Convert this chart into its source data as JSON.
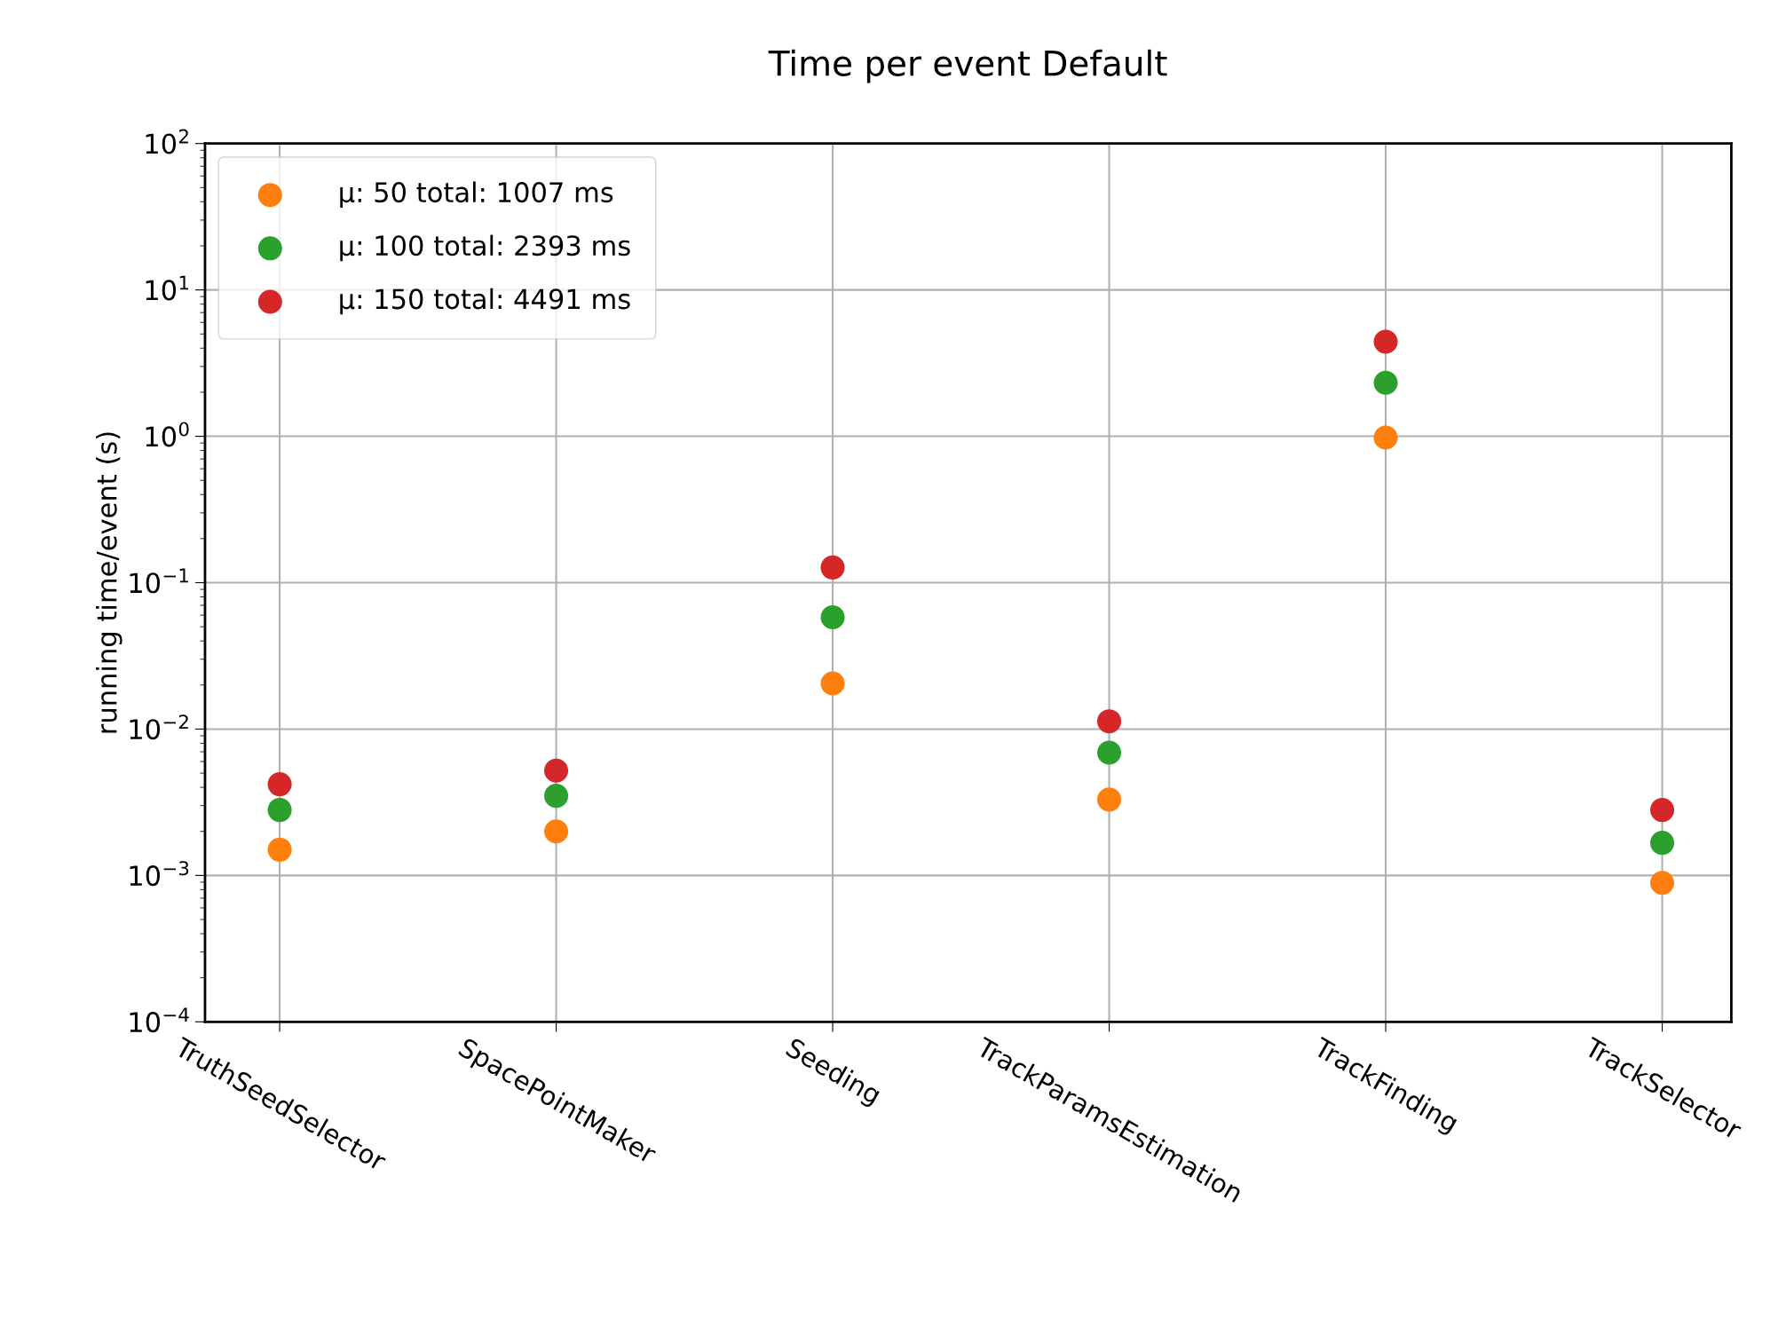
{
  "chart_data": {
    "type": "scatter",
    "title": "Time per event Default",
    "ylabel": "running time/event (s)",
    "categories": [
      "TruthSeedSelector",
      "SpacePointMaker",
      "Seeding",
      "TrackParamsEstimation",
      "TrackFinding",
      "TrackSelector"
    ],
    "series": [
      {
        "name": "μ: 50 total: 1007 ms",
        "color": "#ff7f0e",
        "values": [
          0.0015,
          0.002,
          0.0205,
          0.0033,
          0.98,
          0.00089
        ]
      },
      {
        "name": "μ: 100 total: 2393 ms",
        "color": "#2ca02c",
        "values": [
          0.0028,
          0.0035,
          0.058,
          0.0069,
          2.32,
          0.00167
        ]
      },
      {
        "name": "μ: 150 total: 4491 ms",
        "color": "#d62728",
        "values": [
          0.0042,
          0.0052,
          0.127,
          0.0113,
          4.43,
          0.0028
        ]
      }
    ],
    "log": "y",
    "ylim": [
      0.0001,
      100
    ],
    "yticks": [
      {
        "value": 0.0001,
        "label": "10$^{−4}$"
      },
      {
        "value": 0.001,
        "label": "10$^{−3}$"
      },
      {
        "value": 0.01,
        "label": "10$^{−2}$"
      },
      {
        "value": 0.1,
        "label": "10$^{−1}$"
      },
      {
        "value": 1,
        "label": "10$^{0}$"
      },
      {
        "value": 10,
        "label": "10$^{1}$"
      },
      {
        "value": 100,
        "label": "10$^{2}$"
      }
    ],
    "grid": true,
    "legend": "top left",
    "marker": "circle"
  }
}
